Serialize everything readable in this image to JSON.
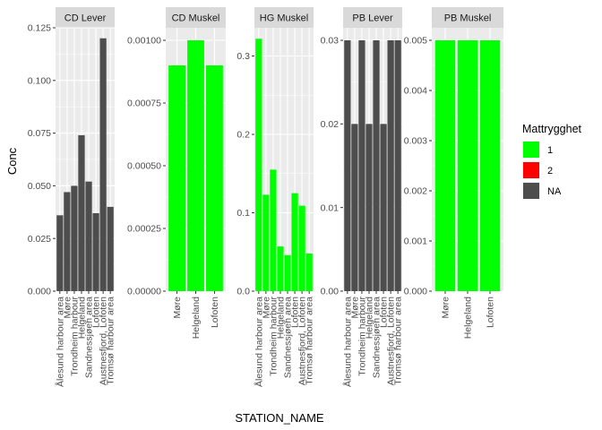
{
  "chart_data": {
    "type": "bar",
    "xlabel": "STATION_NAME",
    "ylabel": "Conc",
    "facet_scales": "free",
    "grid": true,
    "legend": {
      "title": "Mattrygghet",
      "placement": "right",
      "entries": [
        {
          "label": "1",
          "color": "#00FF00"
        },
        {
          "label": "2",
          "color": "#FF0000"
        },
        {
          "label": "NA",
          "color": "#4D4D4D"
        }
      ]
    },
    "panels": [
      {
        "title": "CD Lever",
        "ylim": [
          0,
          0.125
        ],
        "yticks": [
          0,
          0.025,
          0.05,
          0.075,
          0.1,
          0.125
        ],
        "ytick_labels": [
          "0.000",
          "0.025",
          "0.050",
          "0.075",
          "0.100",
          "0.125"
        ],
        "categories": [
          "Ålesund harbour area",
          "Møre",
          "Trondheim harbour",
          "Helgeland",
          "Sandnessjøen area",
          "Lofoten",
          "Austnesfjord, Lofoten",
          "Tromsø harbour area"
        ],
        "values": [
          0.036,
          0.047,
          0.05,
          0.074,
          0.052,
          0.037,
          0.12,
          0.04
        ],
        "groups": [
          "NA",
          "NA",
          "NA",
          "NA",
          "NA",
          "NA",
          "NA",
          "NA"
        ]
      },
      {
        "title": "CD Muskel",
        "ylim": [
          0,
          0.00105
        ],
        "yticks": [
          0,
          0.00025,
          0.0005,
          0.00075,
          0.001
        ],
        "ytick_labels": [
          "0.00000",
          "0.00025",
          "0.00050",
          "0.00075",
          "0.00100"
        ],
        "categories": [
          "Møre",
          "Helgeland",
          "Lofoten"
        ],
        "values": [
          0.0009,
          0.001,
          0.0009
        ],
        "groups": [
          "1",
          "1",
          "1"
        ]
      },
      {
        "title": "HG Muskel",
        "ylim": [
          0,
          0.336
        ],
        "yticks": [
          0,
          0.1,
          0.2,
          0.3
        ],
        "ytick_labels": [
          "0.0",
          "0.1",
          "0.2",
          "0.3"
        ],
        "categories": [
          "Ålesund harbour area",
          "Møre",
          "Trondheim harbour",
          "Helgeland",
          "Sandnessjøen area",
          "Lofoten",
          "Austnesfjord, Lofoten",
          "Tromsø harbour area"
        ],
        "values": [
          0.322,
          0.123,
          0.155,
          0.057,
          0.046,
          0.125,
          0.109,
          0.048
        ],
        "groups": [
          "1",
          "1",
          "1",
          "1",
          "1",
          "1",
          "1",
          "1"
        ]
      },
      {
        "title": "PB Lever",
        "ylim": [
          0,
          0.0315
        ],
        "yticks": [
          0,
          0.01,
          0.02,
          0.03
        ],
        "ytick_labels": [
          "0.00",
          "0.01",
          "0.02",
          "0.03"
        ],
        "categories": [
          "Ålesund harbour area",
          "Møre",
          "Trondheim harbour",
          "Helgeland",
          "Sandnessjøen area",
          "Lofoten",
          "Austnesfjord, Lofoten",
          "Tromsø harbour area"
        ],
        "values": [
          0.03,
          0.02,
          0.03,
          0.02,
          0.03,
          0.02,
          0.03,
          0.03
        ],
        "groups": [
          "NA",
          "NA",
          "NA",
          "NA",
          "NA",
          "NA",
          "NA",
          "NA"
        ]
      },
      {
        "title": "PB Muskel",
        "ylim": [
          0,
          0.00525
        ],
        "yticks": [
          0,
          0.001,
          0.002,
          0.003,
          0.004,
          0.005
        ],
        "ytick_labels": [
          "0.000",
          "0.001",
          "0.002",
          "0.003",
          "0.004",
          "0.005"
        ],
        "categories": [
          "Møre",
          "Helgeland",
          "Lofoten"
        ],
        "values": [
          0.005,
          0.005,
          0.005
        ],
        "groups": [
          "1",
          "1",
          "1"
        ]
      }
    ]
  }
}
